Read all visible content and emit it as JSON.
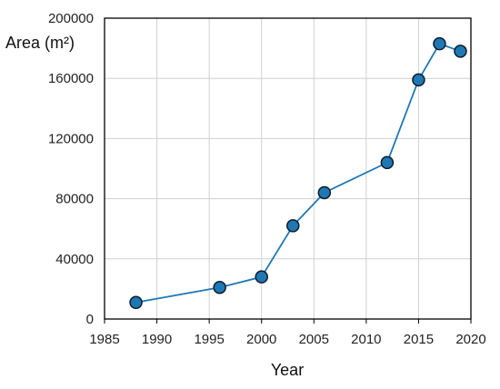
{
  "chart_data": {
    "type": "line",
    "title": "",
    "xlabel": "Year",
    "ylabel": "Area (m²)",
    "xlim": [
      1985,
      2020
    ],
    "ylim": [
      0,
      200000
    ],
    "x_ticks": [
      1985,
      1990,
      1995,
      2000,
      2005,
      2010,
      2015,
      2020
    ],
    "y_ticks": [
      0,
      40000,
      80000,
      120000,
      160000,
      200000
    ],
    "x_tick_labels": [
      "1985",
      "1990",
      "1995",
      "2000",
      "2005",
      "2010",
      "2015",
      "2020"
    ],
    "y_tick_labels": [
      "0",
      "40000",
      "80000",
      "120000",
      "160000",
      "200000"
    ],
    "grid": true,
    "legend": "none",
    "series": [
      {
        "color": "#1f78b4",
        "marker": "circle",
        "x": [
          1988,
          1996,
          2000,
          2003,
          2006,
          2012,
          2015,
          2017,
          2019
        ],
        "y": [
          11000,
          21000,
          28000,
          62000,
          84000,
          104000,
          159000,
          183000,
          178000
        ]
      }
    ]
  }
}
